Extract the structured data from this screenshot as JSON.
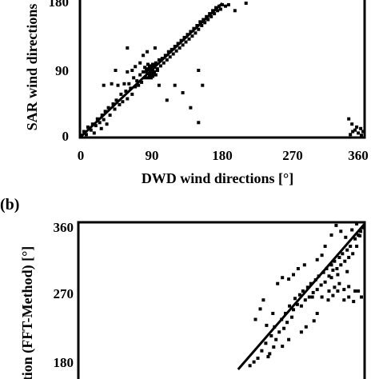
{
  "panels": {
    "b_label": "(b)"
  },
  "chart_data": [
    {
      "type": "scatter",
      "title": "",
      "xlabel": "DWD wind directions [°]",
      "ylabel": "SAR wind directions",
      "xlim": [
        0,
        360
      ],
      "ylim": [
        0,
        180
      ],
      "x_ticks": [
        "0",
        "90",
        "180",
        "270",
        "360"
      ],
      "y_ticks": [
        "0",
        "90",
        "180"
      ],
      "regression_line": [
        [
          0,
          0
        ],
        [
          180,
          180
        ]
      ],
      "series": [
        {
          "points": [
            [
              2,
              3
            ],
            [
              5,
              8
            ],
            [
              8,
              4
            ],
            [
              10,
              14
            ],
            [
              14,
              10
            ],
            [
              16,
              18
            ],
            [
              18,
              6
            ],
            [
              20,
              16
            ],
            [
              22,
              25
            ],
            [
              25,
              20
            ],
            [
              27,
              12
            ],
            [
              28,
              30
            ],
            [
              30,
              24
            ],
            [
              32,
              35
            ],
            [
              34,
              18
            ],
            [
              36,
              40
            ],
            [
              38,
              30
            ],
            [
              40,
              72
            ],
            [
              42,
              45
            ],
            [
              44,
              38
            ],
            [
              46,
              50
            ],
            [
              48,
              70
            ],
            [
              50,
              44
            ],
            [
              52,
              58
            ],
            [
              54,
              48
            ],
            [
              56,
              72
            ],
            [
              58,
              62
            ],
            [
              60,
              52
            ],
            [
              62,
              72
            ],
            [
              64,
              66
            ],
            [
              66,
              58
            ],
            [
              68,
              80
            ],
            [
              70,
              68
            ],
            [
              72,
              76
            ],
            [
              74,
              70
            ],
            [
              76,
              84
            ],
            [
              78,
              74
            ],
            [
              80,
              88
            ],
            [
              82,
              80
            ],
            [
              84,
              92
            ],
            [
              86,
              86
            ],
            [
              88,
              95
            ],
            [
              90,
              90
            ],
            [
              92,
              98
            ],
            [
              94,
              88
            ],
            [
              96,
              100
            ],
            [
              98,
              92
            ],
            [
              100,
              104
            ],
            [
              102,
              96
            ],
            [
              104,
              106
            ],
            [
              106,
              100
            ],
            [
              108,
              110
            ],
            [
              110,
              104
            ],
            [
              112,
              115
            ],
            [
              114,
              108
            ],
            [
              116,
              118
            ],
            [
              118,
              112
            ],
            [
              120,
              122
            ],
            [
              122,
              116
            ],
            [
              124,
              126
            ],
            [
              126,
              120
            ],
            [
              128,
              130
            ],
            [
              130,
              124
            ],
            [
              132,
              134
            ],
            [
              134,
              128
            ],
            [
              136,
              138
            ],
            [
              138,
              132
            ],
            [
              140,
              142
            ],
            [
              142,
              136
            ],
            [
              144,
              146
            ],
            [
              146,
              140
            ],
            [
              148,
              150
            ],
            [
              150,
              145
            ],
            [
              152,
              155
            ],
            [
              154,
              150
            ],
            [
              156,
              158
            ],
            [
              158,
              154
            ],
            [
              160,
              162
            ],
            [
              162,
              158
            ],
            [
              164,
              166
            ],
            [
              166,
              162
            ],
            [
              168,
              170
            ],
            [
              170,
              166
            ],
            [
              172,
              174
            ],
            [
              174,
              170
            ],
            [
              176,
              176
            ],
            [
              178,
              172
            ],
            [
              180,
              178
            ],
            [
              184,
              176
            ],
            [
              188,
              178
            ],
            [
              196,
              170
            ],
            [
              210,
              180
            ],
            [
              120,
              70
            ],
            [
              130,
              60
            ],
            [
              140,
              40
            ],
            [
              155,
              70
            ],
            [
              150,
              90
            ],
            [
              110,
              50
            ],
            [
              100,
              70
            ],
            [
              60,
              88
            ],
            [
              70,
              95
            ],
            [
              45,
              90
            ],
            [
              80,
              110
            ],
            [
              95,
              120
            ],
            [
              85,
              115
            ],
            [
              76,
              100
            ],
            [
              66,
              90
            ],
            [
              150,
              20
            ],
            [
              60,
              120
            ],
            [
              30,
              70
            ],
            [
              86,
              80
            ],
            [
              88,
              84
            ],
            [
              90,
              86
            ],
            [
              92,
              90
            ],
            [
              94,
              94
            ],
            [
              90,
              96
            ],
            [
              88,
              92
            ],
            [
              86,
              98
            ],
            [
              92,
              82
            ],
            [
              94,
              88
            ],
            [
              96,
              84
            ],
            [
              84,
              88
            ],
            [
              82,
              94
            ],
            [
              98,
              90
            ],
            [
              90,
              80
            ],
            [
              91,
              93
            ],
            [
              89,
              87
            ],
            [
              87,
              91
            ],
            [
              93,
              85
            ],
            [
              95,
              97
            ],
            [
              340,
              25
            ],
            [
              344,
              18
            ],
            [
              348,
              10
            ],
            [
              352,
              6
            ],
            [
              356,
              3
            ],
            [
              350,
              14
            ],
            [
              345,
              8
            ],
            [
              355,
              12
            ],
            [
              342,
              4
            ],
            [
              358,
              8
            ]
          ]
        }
      ]
    },
    {
      "type": "scatter",
      "title": "",
      "xlabel": "",
      "ylabel": "tion (FFT-Method) [°]",
      "xlim": [
        0,
        360
      ],
      "ylim": [
        150,
        360
      ],
      "y_ticks": [
        "180",
        "270",
        "360"
      ],
      "regression_line": [
        [
          200,
          165
        ],
        [
          360,
          360
        ]
      ],
      "series": [
        {
          "points": [
            [
              215,
              170
            ],
            [
              220,
              175
            ],
            [
              225,
              180
            ],
            [
              230,
              190
            ],
            [
              235,
              200
            ],
            [
              238,
              182
            ],
            [
              242,
              210
            ],
            [
              245,
              195
            ],
            [
              248,
              205
            ],
            [
              252,
              215
            ],
            [
              255,
              232
            ],
            [
              258,
              220
            ],
            [
              260,
              240
            ],
            [
              262,
              228
            ],
            [
              265,
              250
            ],
            [
              268,
              235
            ],
            [
              270,
              245
            ],
            [
              272,
              260
            ],
            [
              275,
              252
            ],
            [
              278,
              265
            ],
            [
              280,
              250
            ],
            [
              282,
              270
            ],
            [
              285,
              258
            ],
            [
              288,
              275
            ],
            [
              290,
              262
            ],
            [
              292,
              280
            ],
            [
              295,
              268
            ],
            [
              298,
              285
            ],
            [
              300,
              272
            ],
            [
              302,
              290
            ],
            [
              305,
              278
            ],
            [
              308,
              295
            ],
            [
              310,
              282
            ],
            [
              312,
              300
            ],
            [
              315,
              290
            ],
            [
              318,
              305
            ],
            [
              320,
              298
            ],
            [
              322,
              310
            ],
            [
              325,
              300
            ],
            [
              328,
              315
            ],
            [
              330,
              305
            ],
            [
              332,
              320
            ],
            [
              335,
              310
            ],
            [
              338,
              325
            ],
            [
              340,
              315
            ],
            [
              342,
              330
            ],
            [
              345,
              320
            ],
            [
              348,
              340
            ],
            [
              350,
              330
            ],
            [
              352,
              345
            ],
            [
              355,
              350
            ],
            [
              358,
              355
            ],
            [
              222,
              232
            ],
            [
              228,
              246
            ],
            [
              232,
              258
            ],
            [
              236,
              224
            ],
            [
              246,
              222
            ],
            [
              250,
              280
            ],
            [
              256,
              288
            ],
            [
              264,
              286
            ],
            [
              270,
              292
            ],
            [
              276,
              300
            ],
            [
              284,
              305
            ],
            [
              294,
              262
            ],
            [
              300,
              240
            ],
            [
              306,
              262
            ],
            [
              314,
              258
            ],
            [
              320,
              264
            ],
            [
              326,
              270
            ],
            [
              334,
              258
            ],
            [
              340,
              262
            ],
            [
              346,
              256
            ],
            [
              352,
              270
            ],
            [
              356,
              262
            ],
            [
              310,
              330
            ],
            [
              318,
              345
            ],
            [
              324,
              358
            ],
            [
              330,
              350
            ],
            [
              336,
              342
            ],
            [
              344,
              352
            ],
            [
              350,
              360
            ],
            [
              354,
              344
            ],
            [
              315,
              270
            ],
            [
              322,
              275
            ],
            [
              328,
              280
            ],
            [
              334,
              272
            ],
            [
              340,
              276
            ],
            [
              348,
              270
            ],
            [
              300,
              312
            ],
            [
              306,
              318
            ],
            [
              280,
              215
            ],
            [
              286,
              222
            ],
            [
              264,
              205
            ],
            [
              256,
              196
            ],
            [
              244,
              240
            ],
            [
              240,
              186
            ],
            [
              296,
              230
            ],
            [
              318,
              288
            ],
            [
              326,
              292
            ],
            [
              338,
              296
            ]
          ]
        }
      ]
    }
  ]
}
